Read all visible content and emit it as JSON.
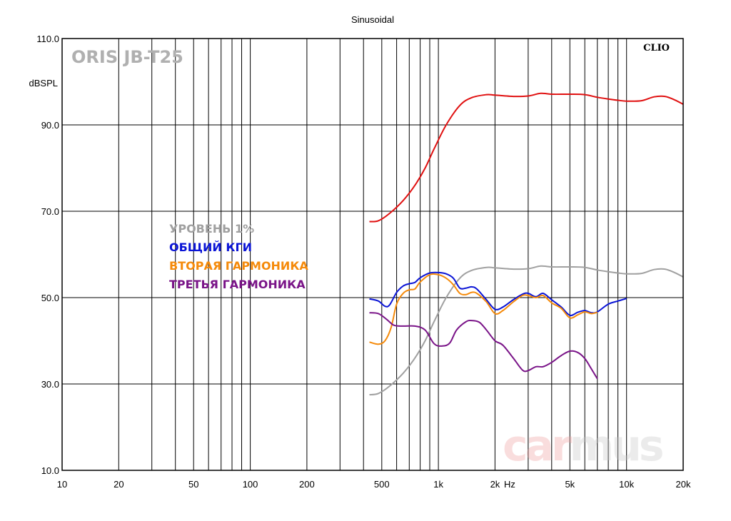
{
  "chart_data": {
    "type": "line",
    "title": "Sinusoidal",
    "ylabel": "dBSPL",
    "xunit": "Hz",
    "xscale": "log",
    "xlim": [
      10,
      20000
    ],
    "ylim": [
      10,
      110
    ],
    "grid": true,
    "brand_label": "ORIS JB-T25",
    "software_label": "CLIO",
    "watermark": [
      "car",
      "mus"
    ],
    "x_ticks": [
      {
        "value": 10,
        "label": "10"
      },
      {
        "value": 20,
        "label": "20"
      },
      {
        "value": 50,
        "label": "50"
      },
      {
        "value": 100,
        "label": "100"
      },
      {
        "value": 200,
        "label": "200"
      },
      {
        "value": 500,
        "label": "500"
      },
      {
        "value": 1000,
        "label": "1k"
      },
      {
        "value": 2000,
        "label": "2k"
      },
      {
        "value": 5000,
        "label": "5k"
      },
      {
        "value": 10000,
        "label": "10k"
      },
      {
        "value": 20000,
        "label": "20k"
      }
    ],
    "y_ticks": [
      {
        "value": 110,
        "label": "110.0"
      },
      {
        "value": 90,
        "label": "90.0"
      },
      {
        "value": 70,
        "label": "70.0"
      },
      {
        "value": 50,
        "label": "50.0"
      },
      {
        "value": 30,
        "label": "30.0"
      },
      {
        "value": 10,
        "label": "10.0"
      }
    ],
    "legend": {
      "placement": "center-left",
      "entries": [
        {
          "label": "УРОВЕНЬ 1%",
          "color": "#a0a0a0"
        },
        {
          "label": "ОБЩИЙ КГИ",
          "color": "#0a14d6"
        },
        {
          "label": "ВТОРАЯ ГАРМОНИКА",
          "color": "#f58a0a"
        },
        {
          "label": "ТРЕТЬЯ ГАРМОНИКА",
          "color": "#7a1488"
        }
      ]
    },
    "series": [
      {
        "color": "#e01010",
        "points": [
          [
            430,
            67.6
          ],
          [
            480,
            67.8
          ],
          [
            550,
            69.5
          ],
          [
            650,
            72.5
          ],
          [
            750,
            76
          ],
          [
            850,
            80
          ],
          [
            950,
            84.5
          ],
          [
            1100,
            90
          ],
          [
            1300,
            94.5
          ],
          [
            1500,
            96.3
          ],
          [
            1800,
            97
          ],
          [
            2000,
            96.9
          ],
          [
            2500,
            96.6
          ],
          [
            3000,
            96.7
          ],
          [
            3500,
            97.3
          ],
          [
            4000,
            97.1
          ],
          [
            5000,
            97.1
          ],
          [
            6000,
            97
          ],
          [
            7000,
            96.4
          ],
          [
            8000,
            96
          ],
          [
            9000,
            95.7
          ],
          [
            10000,
            95.5
          ],
          [
            12000,
            95.6
          ],
          [
            14000,
            96.5
          ],
          [
            16000,
            96.6
          ],
          [
            18000,
            95.8
          ],
          [
            20000,
            94.8
          ]
        ]
      },
      {
        "color": "#a0a0a0",
        "points": [
          [
            430,
            27.5
          ],
          [
            480,
            27.8
          ],
          [
            550,
            29.5
          ],
          [
            650,
            32.5
          ],
          [
            750,
            36
          ],
          [
            850,
            40
          ],
          [
            950,
            44.5
          ],
          [
            1100,
            50
          ],
          [
            1300,
            54.5
          ],
          [
            1500,
            56.3
          ],
          [
            1800,
            57
          ],
          [
            2000,
            56.9
          ],
          [
            2500,
            56.6
          ],
          [
            3000,
            56.7
          ],
          [
            3500,
            57.3
          ],
          [
            4000,
            57.1
          ],
          [
            5000,
            57.1
          ],
          [
            6000,
            57
          ],
          [
            7000,
            56.4
          ],
          [
            8000,
            56
          ],
          [
            9000,
            55.7
          ],
          [
            10000,
            55.5
          ],
          [
            12000,
            55.6
          ],
          [
            14000,
            56.5
          ],
          [
            16000,
            56.6
          ],
          [
            18000,
            55.8
          ],
          [
            20000,
            54.8
          ]
        ]
      },
      {
        "color": "#0a14d6",
        "points": [
          [
            430,
            49.7
          ],
          [
            480,
            49.2
          ],
          [
            520,
            48
          ],
          [
            550,
            48.3
          ],
          [
            600,
            51.2
          ],
          [
            650,
            52.7
          ],
          [
            700,
            53.2
          ],
          [
            750,
            53.5
          ],
          [
            800,
            54.6
          ],
          [
            900,
            55.7
          ],
          [
            1000,
            55.8
          ],
          [
            1100,
            55.5
          ],
          [
            1200,
            54.5
          ],
          [
            1300,
            52.2
          ],
          [
            1400,
            52.2
          ],
          [
            1500,
            52.5
          ],
          [
            1600,
            52
          ],
          [
            1800,
            49.5
          ],
          [
            2000,
            47.3
          ],
          [
            2200,
            47.8
          ],
          [
            2500,
            49.5
          ],
          [
            2800,
            50.8
          ],
          [
            3000,
            51
          ],
          [
            3300,
            50.2
          ],
          [
            3600,
            51
          ],
          [
            4000,
            49.5
          ],
          [
            4500,
            47.8
          ],
          [
            5000,
            45.9
          ],
          [
            5500,
            46.6
          ],
          [
            6000,
            47
          ],
          [
            6500,
            46.5
          ],
          [
            7000,
            46.7
          ],
          [
            8000,
            48.5
          ],
          [
            9000,
            49.2
          ],
          [
            10000,
            49.8
          ]
        ]
      },
      {
        "color": "#f58a0a",
        "points": [
          [
            430,
            39.7
          ],
          [
            480,
            39.2
          ],
          [
            520,
            40
          ],
          [
            560,
            43
          ],
          [
            600,
            48.5
          ],
          [
            650,
            51
          ],
          [
            700,
            51.8
          ],
          [
            750,
            52
          ],
          [
            800,
            53.6
          ],
          [
            900,
            55.3
          ],
          [
            1000,
            55.3
          ],
          [
            1100,
            54.5
          ],
          [
            1200,
            53
          ],
          [
            1300,
            51
          ],
          [
            1400,
            50.7
          ],
          [
            1500,
            51.2
          ],
          [
            1600,
            51
          ],
          [
            1800,
            49
          ],
          [
            2000,
            46.3
          ],
          [
            2200,
            47
          ],
          [
            2500,
            49
          ],
          [
            2800,
            50.5
          ],
          [
            3000,
            50.5
          ],
          [
            3300,
            50
          ],
          [
            3600,
            50.5
          ],
          [
            4000,
            48.8
          ],
          [
            4500,
            47.5
          ],
          [
            5000,
            45.3
          ],
          [
            5500,
            46
          ],
          [
            6000,
            46.7
          ],
          [
            6500,
            46.3
          ],
          [
            7000,
            46.6
          ]
        ]
      },
      {
        "color": "#7a1488",
        "points": [
          [
            430,
            46.5
          ],
          [
            480,
            46.3
          ],
          [
            530,
            45
          ],
          [
            580,
            43.6
          ],
          [
            650,
            43.4
          ],
          [
            750,
            43.4
          ],
          [
            850,
            42.5
          ],
          [
            950,
            39.3
          ],
          [
            1050,
            38.8
          ],
          [
            1150,
            39.5
          ],
          [
            1250,
            42.5
          ],
          [
            1400,
            44.4
          ],
          [
            1500,
            44.7
          ],
          [
            1650,
            44.3
          ],
          [
            1800,
            42.5
          ],
          [
            2000,
            40
          ],
          [
            2200,
            39
          ],
          [
            2500,
            36
          ],
          [
            2800,
            33.2
          ],
          [
            3000,
            33.1
          ],
          [
            3300,
            34
          ],
          [
            3600,
            34
          ],
          [
            4000,
            35
          ],
          [
            4500,
            36.6
          ],
          [
            5000,
            37.6
          ],
          [
            5500,
            37.3
          ],
          [
            6000,
            35.9
          ],
          [
            6500,
            33.5
          ],
          [
            7000,
            31.2
          ]
        ]
      }
    ]
  }
}
